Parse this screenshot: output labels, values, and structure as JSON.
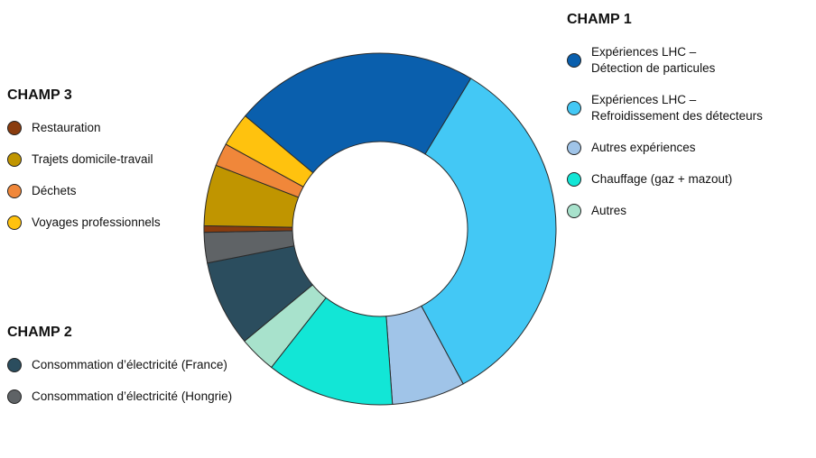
{
  "chart_data": {
    "type": "pie",
    "groups": [
      {
        "title": "CHAMP 1",
        "slices": [
          {
            "name": "Expériences LHC –\nDétection de particules",
            "color": "#0a5fad",
            "value": 22.5
          },
          {
            "name": "Expériences LHC –\nRefroidissement des détecteurs",
            "color": "#43c8f5",
            "value": 33.5
          },
          {
            "name": "Autres expériences",
            "color": "#a0c4e8",
            "value": 6.7
          },
          {
            "name": "Chauffage (gaz + mazout)",
            "color": "#12e6d6",
            "value": 11.7
          },
          {
            "name": "Autres",
            "color": "#a8e2cc",
            "value": 3.4
          }
        ]
      },
      {
        "title": "CHAMP 2",
        "slices": [
          {
            "name": "Consommation d’électricité (France)",
            "color": "#2b4d5e",
            "value": 7.9
          },
          {
            "name": "Consommation d’électricité (Hongrie)",
            "color": "#5f6366",
            "value": 2.8
          }
        ]
      },
      {
        "title": "CHAMP 3",
        "slices": [
          {
            "name": "Restauration",
            "color": "#8a3c0e",
            "value": 0.6
          },
          {
            "name": "Trajets domicile-travail",
            "color": "#c09500",
            "value": 5.6
          },
          {
            "name": "Déchets",
            "color": "#f0873a",
            "value": 2.1
          },
          {
            "name": "Voyages professionnels",
            "color": "#ffc20e",
            "value": 3.1
          }
        ]
      }
    ]
  }
}
